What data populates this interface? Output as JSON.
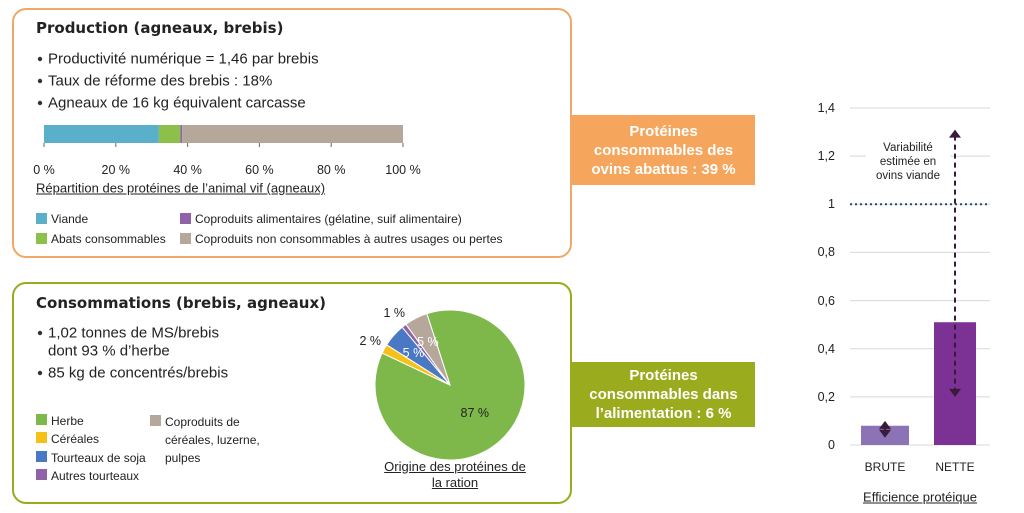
{
  "panels": [
    {
      "title": "Production (agneaux, brebis)",
      "bullets": [
        [
          "Productivité numérique = 1,46  par brebis"
        ],
        [
          "Taux de réforme des brebis : 18%"
        ],
        [
          "Agneaux de 16 kg équivalent carcasse"
        ]
      ],
      "callout": "Protéines consommables des ovins abattus : 39 %"
    },
    {
      "title": "Consommations (brebis, agneaux)",
      "bullets": [
        [
          "1,02 tonnes de MS/brebis",
          "dont 93 % d’herbe"
        ],
        [
          "85 kg de concentrés/brebis"
        ]
      ],
      "callout": "Protéines consommables dans l’alimentation : 6 %"
    }
  ],
  "chart_data": [
    {
      "type": "stacked_hbar",
      "title": "Répartition des protéines de l’animal vif (agneaux)",
      "series": [
        {
          "name": "Viande",
          "color": "#5aafca",
          "values": [
            32
          ]
        },
        {
          "name": "Abats consommables",
          "color": "#8dc04a",
          "values": [
            6
          ]
        },
        {
          "name": "Coproduits alimentaires (gélatine, suif alimentaire)",
          "color": "#8e63a8",
          "values": [
            0.5
          ]
        },
        {
          "name": "Coproduits non consommables à autres usages ou pertes",
          "color": "#b5a89a",
          "values": [
            61.5
          ]
        }
      ],
      "xlim": [
        0,
        100
      ],
      "xticks": [
        {
          "value": 0,
          "label": "0 %"
        },
        {
          "value": 20,
          "label": "20 %"
        },
        {
          "value": 40,
          "label": "40 %"
        },
        {
          "value": 60,
          "label": "60 %"
        },
        {
          "value": 80,
          "label": "80 %"
        },
        {
          "value": 100,
          "label": "100 %"
        }
      ]
    },
    {
      "type": "pie",
      "title": "Origine des protéines de la ration",
      "categories": [
        "Herbe",
        "Céréales",
        "Tourteaux de soja",
        "Autres tourteaux",
        "Coproduits de céréales, luzerne, pulpes"
      ],
      "values": [
        87,
        2,
        5,
        1,
        5
      ],
      "value_labels": [
        "87 %",
        "2 %",
        "5 %",
        "1 %",
        "5 %"
      ],
      "colors": [
        "#7fb84a",
        "#f5c118",
        "#4a78c4",
        "#8e63a8",
        "#b5a89a"
      ]
    },
    {
      "type": "bar",
      "x_label": "Efficience protéique",
      "categories": [
        "BRUTE",
        "NETTE"
      ],
      "values": [
        0.08,
        0.51
      ],
      "colors": [
        "#8b73b5",
        "#7b3294"
      ],
      "ranges": [
        [
          0.03,
          0.1
        ],
        [
          0.2,
          1.31
        ]
      ],
      "reference_line": 1,
      "annotation": "Variabilité estimée en ovins viande",
      "ylim": [
        0,
        1.4
      ],
      "yticks": [
        0,
        {
          "value": 0.2,
          "label": "0,2"
        },
        {
          "value": 0.4,
          "label": "0,4"
        },
        {
          "value": 0.6,
          "label": "0,6"
        },
        {
          "value": 0.8,
          "label": "0,8"
        },
        1,
        {
          "value": 1.2,
          "label": "1,2"
        },
        {
          "value": 1.4,
          "label": "1,4"
        }
      ],
      "grid": true
    }
  ]
}
